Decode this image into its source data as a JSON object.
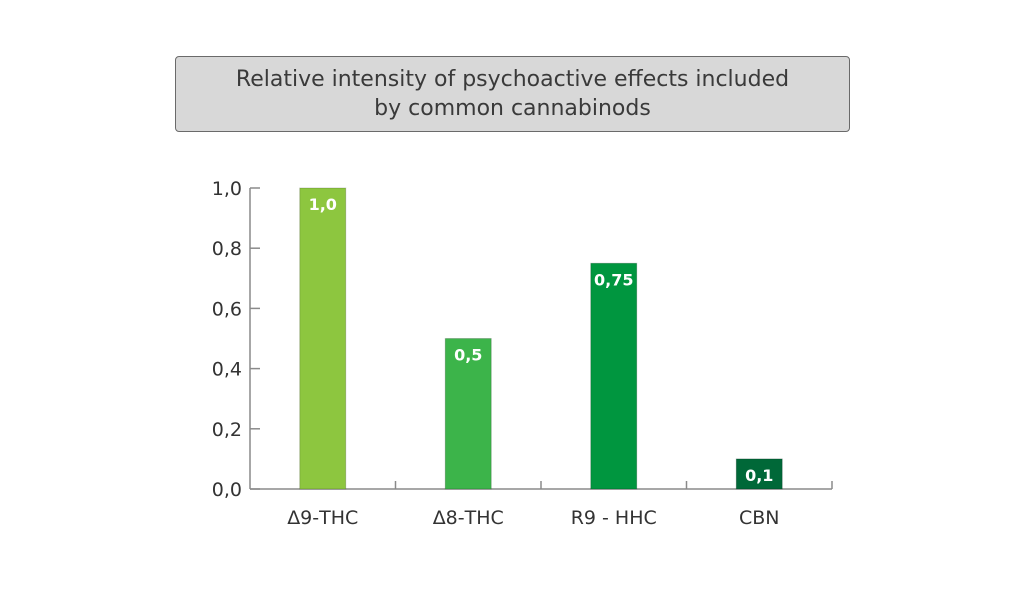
{
  "chart_data": {
    "type": "bar",
    "title_lines": [
      "Relative intensity of psychoactive effects included",
      "by common cannabinods"
    ],
    "categories": [
      "Δ9-THC",
      "Δ8-THC",
      "R9 - HHC",
      "CBN"
    ],
    "values": [
      1.0,
      0.5,
      0.75,
      0.1
    ],
    "data_labels": [
      "1,0",
      "0,5",
      "0,75",
      "0,1"
    ],
    "bar_colors": [
      "#8dc63f",
      "#3cb44a",
      "#00963f",
      "#006838"
    ],
    "yticks": [
      0.0,
      0.2,
      0.4,
      0.6,
      0.8,
      1.0
    ],
    "ytick_labels": [
      "0,0",
      "0,2",
      "0,4",
      "0,6",
      "0,8",
      "1,0"
    ],
    "ylim": [
      0,
      1.0
    ],
    "xlabel": "",
    "ylabel": "",
    "grid": false,
    "legend": "none"
  }
}
